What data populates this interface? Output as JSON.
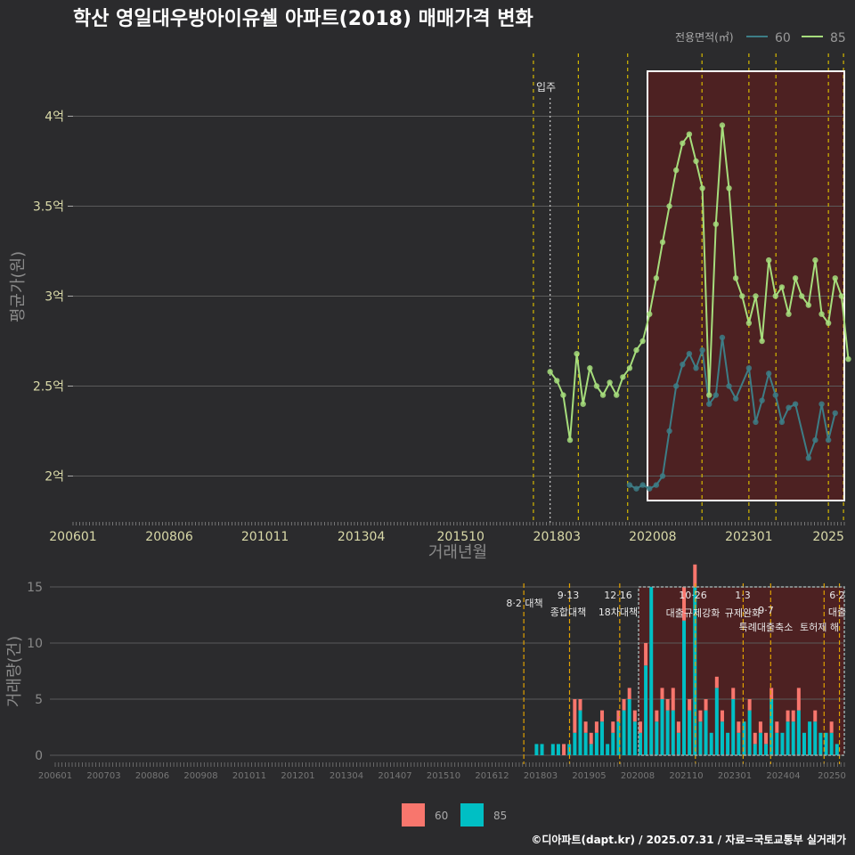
{
  "title": "학산 영일대우방아이유쉘 아파트(2018) 매매가격 변화",
  "footer": "©디아파트(dapt.kr) / 2025.07.31 / 자료=국토교통부 실거래가",
  "colors": {
    "bg": "#2b2b2d",
    "s60": "#3d7d86",
    "s85": "#a6dd7c",
    "b60": "#f8766d",
    "b85": "#00bfc4",
    "policy": "#d4b800",
    "shade": "#5a1f1f"
  },
  "chart_data": [
    {
      "type": "line",
      "ylabel": "평균가(원)",
      "xlabel": "거래년월",
      "legend_title": "전용면적(㎡)",
      "legend": [
        "60",
        "85"
      ],
      "x_ticks": [
        "200601",
        "200806",
        "201011",
        "201304",
        "201510",
        "201803",
        "202008",
        "202301",
        "2025"
      ],
      "y_ticks": [
        "2억",
        "2.5억",
        "3억",
        "3.5억",
        "4억"
      ],
      "ylim_억": [
        1.75,
        4.25
      ],
      "annotation": "입주",
      "series": [
        {
          "name": "60",
          "x": [
            2020.0,
            2020.17,
            2020.33,
            2020.5,
            2020.67,
            2020.83,
            2021.0,
            2021.17,
            2021.33,
            2021.5,
            2021.67,
            2021.83,
            2022.0,
            2022.17,
            2022.33,
            2022.5,
            2022.67,
            2023.0,
            2023.17,
            2023.33,
            2023.5,
            2023.67,
            2023.83,
            2024.0,
            2024.17,
            2024.5,
            2024.67,
            2024.83,
            2025.0,
            2025.17
          ],
          "y": [
            1.95,
            1.93,
            1.95,
            1.93,
            1.95,
            2.0,
            2.25,
            2.5,
            2.62,
            2.68,
            2.6,
            2.7,
            2.4,
            2.45,
            2.77,
            2.5,
            2.43,
            2.6,
            2.3,
            2.42,
            2.57,
            2.45,
            2.3,
            2.38,
            2.4,
            2.1,
            2.2,
            2.4,
            2.2,
            2.35
          ]
        },
        {
          "name": "85",
          "x": [
            2018.0,
            2018.17,
            2018.33,
            2018.5,
            2018.67,
            2018.83,
            2019.0,
            2019.17,
            2019.33,
            2019.5,
            2019.67,
            2019.83,
            2020.0,
            2020.17,
            2020.33,
            2020.5,
            2020.67,
            2020.83,
            2021.0,
            2021.17,
            2021.33,
            2021.5,
            2021.67,
            2021.83,
            2022.0,
            2022.17,
            2022.33,
            2022.5,
            2022.67,
            2022.83,
            2023.0,
            2023.17,
            2023.33,
            2023.5,
            2023.67,
            2023.83,
            2024.0,
            2024.17,
            2024.33,
            2024.5,
            2024.67,
            2024.83,
            2025.0,
            2025.17,
            2025.33,
            2025.5
          ],
          "y": [
            2.58,
            2.53,
            2.45,
            2.2,
            2.68,
            2.4,
            2.6,
            2.5,
            2.45,
            2.52,
            2.45,
            2.55,
            2.6,
            2.7,
            2.75,
            2.9,
            3.1,
            3.3,
            3.5,
            3.7,
            3.85,
            3.9,
            3.75,
            3.6,
            2.45,
            3.4,
            3.95,
            3.6,
            3.1,
            3.0,
            2.85,
            3.0,
            2.75,
            3.2,
            3.0,
            3.05,
            2.9,
            3.1,
            3.0,
            2.95,
            3.2,
            2.9,
            2.85,
            3.1,
            3.0,
            2.65
          ]
        }
      ]
    },
    {
      "type": "bar",
      "ylabel": "거래량(건)",
      "x_ticks": [
        "200601",
        "200703",
        "200806",
        "200908",
        "201011",
        "201201",
        "201304",
        "201407",
        "201510",
        "201612",
        "201803",
        "201905",
        "202008",
        "202110",
        "202301",
        "202404",
        "20250"
      ],
      "y_ticks": [
        "0",
        "5",
        "10",
        "15"
      ],
      "ylim": [
        0,
        15
      ],
      "legend": [
        "60",
        "85"
      ],
      "policy_events": [
        {
          "date": "8·2 대책",
          "label": ""
        },
        {
          "date": "9·13",
          "label": "종합대책"
        },
        {
          "date": "12·16",
          "label": "18차대책"
        },
        {
          "date": "10·26",
          "label": "대출규제강화"
        },
        {
          "date": "1·3",
          "label": "규제완화"
        },
        {
          "date": "9·7",
          "label": "특례대출축소"
        },
        {
          "date": "",
          "label": "토허제 해"
        },
        {
          "date": "6·2",
          "label": "대출"
        }
      ],
      "series": [
        {
          "name": "85",
          "values": [
            1,
            1,
            0,
            1,
            1,
            0,
            1,
            2,
            4,
            2,
            1,
            2,
            3,
            1,
            2,
            3,
            4,
            5,
            3,
            2,
            8,
            15,
            3,
            5,
            4,
            4,
            2,
            12,
            4,
            15,
            3,
            4,
            2,
            6,
            3,
            2,
            5,
            2,
            3,
            4,
            1,
            2,
            1,
            5,
            2,
            2,
            3,
            3,
            4,
            2,
            3,
            3,
            2,
            2,
            2,
            1
          ]
        },
        {
          "name": "60",
          "values": [
            0,
            0,
            0,
            0,
            0,
            1,
            0,
            3,
            1,
            1,
            1,
            1,
            1,
            0,
            1,
            1,
            1,
            1,
            1,
            1,
            2,
            0,
            1,
            1,
            1,
            2,
            1,
            3,
            1,
            2,
            1,
            1,
            0,
            1,
            1,
            0,
            1,
            1,
            0,
            1,
            1,
            1,
            1,
            1,
            1,
            0,
            1,
            1,
            2,
            0,
            0,
            1,
            0,
            0,
            1,
            0
          ]
        }
      ]
    }
  ]
}
